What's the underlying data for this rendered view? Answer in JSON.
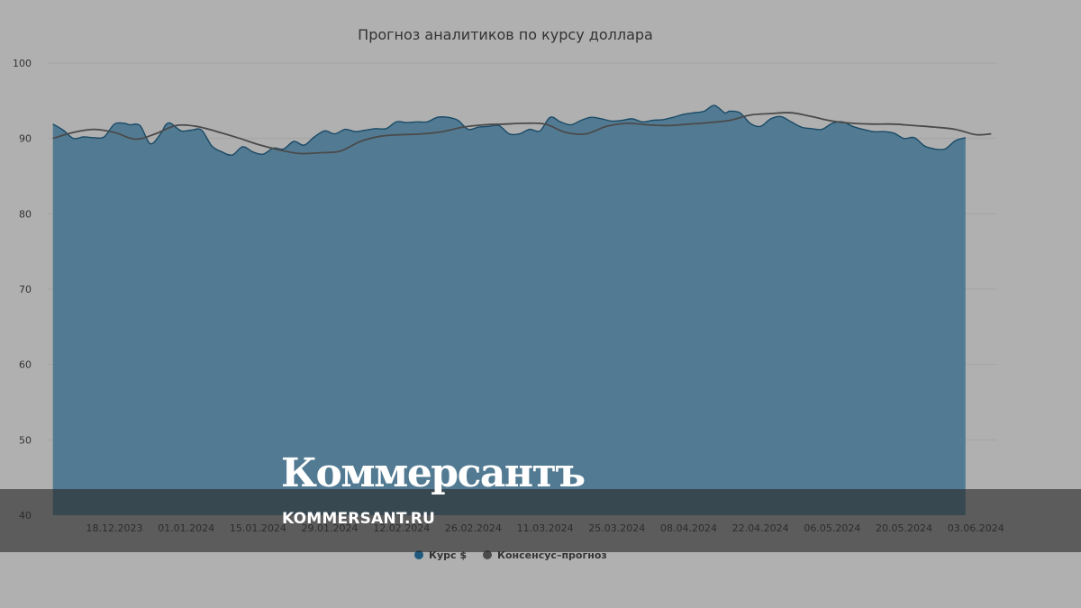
{
  "chart_data": {
    "type": "area",
    "title": "Прогноз аналитиков по курсу доллара",
    "ylim": [
      40,
      100
    ],
    "yticks": [
      40,
      50,
      60,
      70,
      80,
      90,
      100
    ],
    "xlim": [
      "2023-12-05",
      "2024-06-07"
    ],
    "xticks": [
      "18.12.2023",
      "01.01.2024",
      "15.01.2024",
      "29.01.2024",
      "12.02.2024",
      "26.02.2024",
      "11.03.2024",
      "25.03.2024",
      "08.04.2024",
      "22.04.2024",
      "06.05.2024",
      "20.05.2024",
      "03.06.2024"
    ],
    "grid": true,
    "legend_position": "bottom",
    "series": [
      {
        "name": "Курс $",
        "kind": "area",
        "color": "#4d7891",
        "x": [
          "2023-12-06",
          "2023-12-08",
          "2023-12-10",
          "2023-12-12",
          "2023-12-14",
          "2023-12-16",
          "2023-12-18",
          "2023-12-20",
          "2023-12-21",
          "2023-12-23",
          "2023-12-25",
          "2023-12-27",
          "2023-12-28",
          "2023-12-29",
          "2023-12-31",
          "2024-01-02",
          "2024-01-04",
          "2024-01-06",
          "2024-01-08",
          "2024-01-10",
          "2024-01-12",
          "2024-01-14",
          "2024-01-16",
          "2024-01-18",
          "2024-01-20",
          "2024-01-22",
          "2024-01-24",
          "2024-01-26",
          "2024-01-28",
          "2024-01-30",
          "2024-02-01",
          "2024-02-03",
          "2024-02-05",
          "2024-02-07",
          "2024-02-09",
          "2024-02-11",
          "2024-02-13",
          "2024-02-15",
          "2024-02-17",
          "2024-02-19",
          "2024-02-21",
          "2024-02-23",
          "2024-02-25",
          "2024-02-27",
          "2024-02-29",
          "2024-03-02",
          "2024-03-04",
          "2024-03-06",
          "2024-03-08",
          "2024-03-10",
          "2024-03-12",
          "2024-03-14",
          "2024-03-16",
          "2024-03-18",
          "2024-03-20",
          "2024-03-22",
          "2024-03-24",
          "2024-03-26",
          "2024-03-28",
          "2024-03-30",
          "2024-04-01",
          "2024-04-03",
          "2024-04-05",
          "2024-04-07",
          "2024-04-09",
          "2024-04-11",
          "2024-04-13",
          "2024-04-15",
          "2024-04-16",
          "2024-04-18",
          "2024-04-20",
          "2024-04-22",
          "2024-04-24",
          "2024-04-26",
          "2024-04-28",
          "2024-04-30",
          "2024-05-02",
          "2024-05-04",
          "2024-05-06",
          "2024-05-08",
          "2024-05-10",
          "2024-05-12",
          "2024-05-14",
          "2024-05-16",
          "2024-05-18",
          "2024-05-20",
          "2024-05-22",
          "2024-05-24",
          "2024-05-26",
          "2024-05-28",
          "2024-05-30",
          "2024-06-01"
        ],
        "y": [
          91.9,
          91.1,
          90.0,
          90.2,
          90.1,
          90.2,
          91.9,
          92.0,
          91.8,
          91.7,
          89.3,
          90.6,
          91.8,
          92.0,
          91.0,
          91.1,
          91.1,
          89.0,
          88.2,
          87.8,
          88.9,
          88.2,
          87.9,
          88.7,
          88.6,
          89.6,
          89.1,
          90.2,
          91.0,
          90.6,
          91.2,
          90.9,
          91.1,
          91.3,
          91.3,
          92.2,
          92.1,
          92.2,
          92.2,
          92.8,
          92.8,
          92.4,
          91.2,
          91.5,
          91.6,
          91.7,
          90.6,
          90.6,
          91.2,
          91.0,
          92.8,
          92.2,
          91.8,
          92.4,
          92.8,
          92.6,
          92.3,
          92.4,
          92.6,
          92.2,
          92.4,
          92.5,
          92.8,
          93.2,
          93.4,
          93.6,
          94.4,
          93.4,
          93.6,
          93.4,
          92.0,
          91.6,
          92.6,
          92.9,
          92.2,
          91.5,
          91.3,
          91.2,
          92.0,
          92.2,
          91.6,
          91.2,
          90.9,
          90.9,
          90.7,
          90.0,
          90.1,
          89.0,
          88.6,
          88.6,
          89.7,
          90.1
        ]
      },
      {
        "name": "Консенсус–прогноз",
        "kind": "line",
        "color": "#4a4a4a",
        "x": [
          "2023-12-06",
          "2023-12-10",
          "2023-12-14",
          "2023-12-18",
          "2023-12-22",
          "2023-12-26",
          "2023-12-30",
          "2024-01-03",
          "2024-01-07",
          "2024-01-11",
          "2024-01-15",
          "2024-01-19",
          "2024-01-23",
          "2024-01-27",
          "2024-01-31",
          "2024-02-04",
          "2024-02-08",
          "2024-02-12",
          "2024-02-16",
          "2024-02-20",
          "2024-02-24",
          "2024-02-28",
          "2024-03-03",
          "2024-03-07",
          "2024-03-11",
          "2024-03-15",
          "2024-03-19",
          "2024-03-23",
          "2024-03-27",
          "2024-03-31",
          "2024-04-04",
          "2024-04-08",
          "2024-04-12",
          "2024-04-16",
          "2024-04-20",
          "2024-04-24",
          "2024-04-28",
          "2024-05-02",
          "2024-05-06",
          "2024-05-10",
          "2024-05-14",
          "2024-05-18",
          "2024-05-22",
          "2024-05-26",
          "2024-05-30",
          "2024-06-03",
          "2024-06-06"
        ],
        "y": [
          90.0,
          90.8,
          91.2,
          90.8,
          89.9,
          90.6,
          91.7,
          91.6,
          90.9,
          90.1,
          89.2,
          88.5,
          88.0,
          88.1,
          88.3,
          89.6,
          90.3,
          90.5,
          90.6,
          90.9,
          91.5,
          91.8,
          91.9,
          92.0,
          91.9,
          90.8,
          90.6,
          91.6,
          92.0,
          91.8,
          91.7,
          91.9,
          92.1,
          92.4,
          93.1,
          93.3,
          93.4,
          92.9,
          92.3,
          92.0,
          91.9,
          91.9,
          91.7,
          91.5,
          91.2,
          90.5,
          90.6
        ]
      }
    ]
  },
  "watermark": {
    "logo": "Коммерсантъ",
    "url": "KOMMERSANT.RU"
  },
  "colors": {
    "background": "#b0b0b0",
    "area_fill": "#4d7891",
    "area_stroke": "#1a4a66",
    "consensus": "#4a4a4a"
  }
}
